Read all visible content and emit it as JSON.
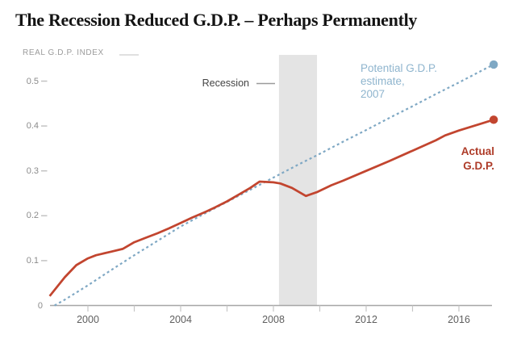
{
  "title": "The Recession Reduced G.D.P. – Perhaps Permanently",
  "kicker": "REAL G.D.P. INDEX",
  "annotations": {
    "recession_label": "Recession",
    "potential_label_lines": [
      "Potential G.D.P.",
      "estimate,",
      "2007"
    ],
    "actual_label_lines": [
      "Actual",
      "G.D.P."
    ]
  },
  "colors": {
    "title": "#141414",
    "kicker": "#9b9b9b",
    "actual_line": "#C2452F",
    "actual_label": "#AE3B28",
    "potential_line": "#7FA8C4",
    "potential_label": "#8FB5CE",
    "recession_band": "#E4E4E4",
    "axis_line": "#A6A6A6",
    "tick_mark": "#C6C6C6",
    "y_dash": "#C3C3C3",
    "y_label": "#8B8B8B",
    "x_label": "#5F5F5F",
    "leader_line": "#9B9B9B",
    "top_dash": "#E0E0E0"
  },
  "chart_data": {
    "type": "line",
    "title": "The Recession Reduced G.D.P. – Perhaps Permanently",
    "ylabel": "REAL G.D.P. INDEX",
    "xlabel": "",
    "xlim": [
      1998.3,
      2017.6
    ],
    "ylim": [
      0,
      0.558
    ],
    "grid": false,
    "legend_position": "inline-annotations",
    "y_ticks": [
      0,
      0.1,
      0.2,
      0.3,
      0.4,
      0.5
    ],
    "x_ticks_minor": [
      2000,
      2002,
      2004,
      2006,
      2008,
      2010,
      2012,
      2014,
      2016
    ],
    "x_ticks_labeled": [
      2000,
      2004,
      2008,
      2012,
      2016
    ],
    "recession_band_years": [
      2008.24,
      2009.88
    ],
    "series": [
      {
        "name": "Potential G.D.P. estimate, 2007",
        "style": "dotted",
        "color": "#7FA8C4",
        "endpoint_dot": true,
        "points": [
          [
            1998.56,
            0.0
          ],
          [
            1999,
            0.013
          ],
          [
            2000,
            0.045
          ],
          [
            2001,
            0.079
          ],
          [
            2002,
            0.112
          ],
          [
            2003,
            0.144
          ],
          [
            2004,
            0.176
          ],
          [
            2005,
            0.204
          ],
          [
            2006,
            0.231
          ],
          [
            2007,
            0.258
          ],
          [
            2008,
            0.285
          ],
          [
            2009,
            0.312
          ],
          [
            2010,
            0.338
          ],
          [
            2011,
            0.365
          ],
          [
            2012,
            0.391
          ],
          [
            2013,
            0.418
          ],
          [
            2014,
            0.444
          ],
          [
            2015,
            0.471
          ],
          [
            2016,
            0.497
          ],
          [
            2017,
            0.524
          ],
          [
            2017.5,
            0.537
          ]
        ]
      },
      {
        "name": "Actual G.D.P.",
        "style": "solid",
        "color": "#C2452F",
        "endpoint_dot": true,
        "points": [
          [
            1998.35,
            0.021
          ],
          [
            1999,
            0.063
          ],
          [
            1999.5,
            0.09
          ],
          [
            2000,
            0.105
          ],
          [
            2000.35,
            0.112
          ],
          [
            2001,
            0.12
          ],
          [
            2001.5,
            0.126
          ],
          [
            2002,
            0.141
          ],
          [
            2002.5,
            0.151
          ],
          [
            2003,
            0.161
          ],
          [
            2003.5,
            0.172
          ],
          [
            2004,
            0.184
          ],
          [
            2004.5,
            0.196
          ],
          [
            2005,
            0.207
          ],
          [
            2005.5,
            0.219
          ],
          [
            2006,
            0.232
          ],
          [
            2006.5,
            0.247
          ],
          [
            2007,
            0.262
          ],
          [
            2007.4,
            0.276
          ],
          [
            2008,
            0.2745
          ],
          [
            2008.3,
            0.272
          ],
          [
            2008.8,
            0.262
          ],
          [
            2009.4,
            0.244
          ],
          [
            2009.9,
            0.253
          ],
          [
            2010.5,
            0.268
          ],
          [
            2011,
            0.278
          ],
          [
            2012,
            0.3
          ],
          [
            2013,
            0.322
          ],
          [
            2014,
            0.345
          ],
          [
            2015,
            0.368
          ],
          [
            2015.4,
            0.379
          ],
          [
            2016,
            0.39
          ],
          [
            2017,
            0.406
          ],
          [
            2017.5,
            0.414
          ]
        ]
      }
    ]
  }
}
